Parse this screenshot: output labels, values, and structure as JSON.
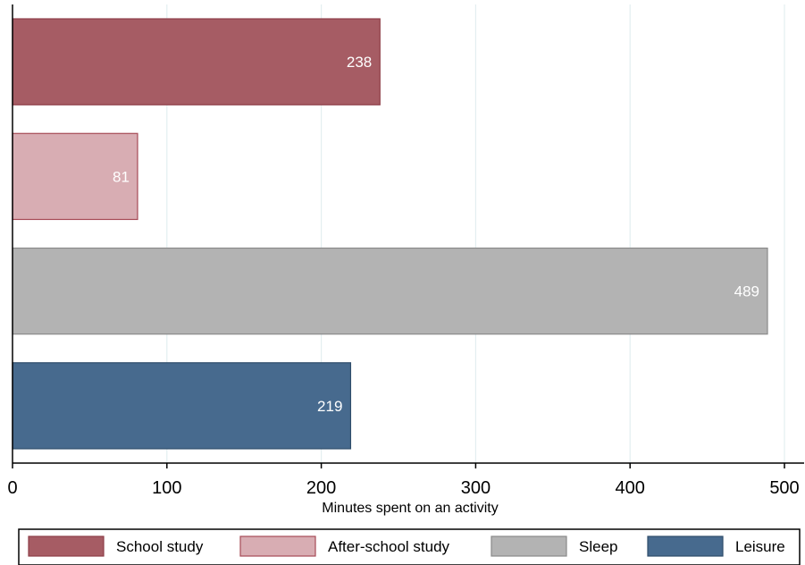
{
  "chart_data": {
    "type": "bar",
    "orientation": "horizontal",
    "categories": [
      "School study",
      "After-school study",
      "Sleep",
      "Leisure"
    ],
    "values": [
      238,
      81,
      489,
      219
    ],
    "data_labels": [
      "238",
      "81",
      "489",
      "219"
    ],
    "colors": [
      "#a65c64",
      "#d8adb3",
      "#b3b3b3",
      "#476a8e"
    ],
    "edge_colors": [
      "#8e3e48",
      "#a64a56",
      "#8a8a8a",
      "#2f4d6b"
    ],
    "title": "",
    "xlabel": "Minutes spent on an activity",
    "ylabel": "",
    "xlim": [
      0,
      500
    ],
    "xticks": [
      0,
      100,
      200,
      300,
      400,
      500
    ],
    "xtick_labels": [
      "0",
      "100",
      "200",
      "300",
      "400",
      "500"
    ],
    "grid": "vertical",
    "grid_color": "#e3eef0",
    "legend": {
      "position": "bottom",
      "entries": [
        "School study",
        "After-school study",
        "Sleep",
        "Leisure"
      ]
    }
  }
}
